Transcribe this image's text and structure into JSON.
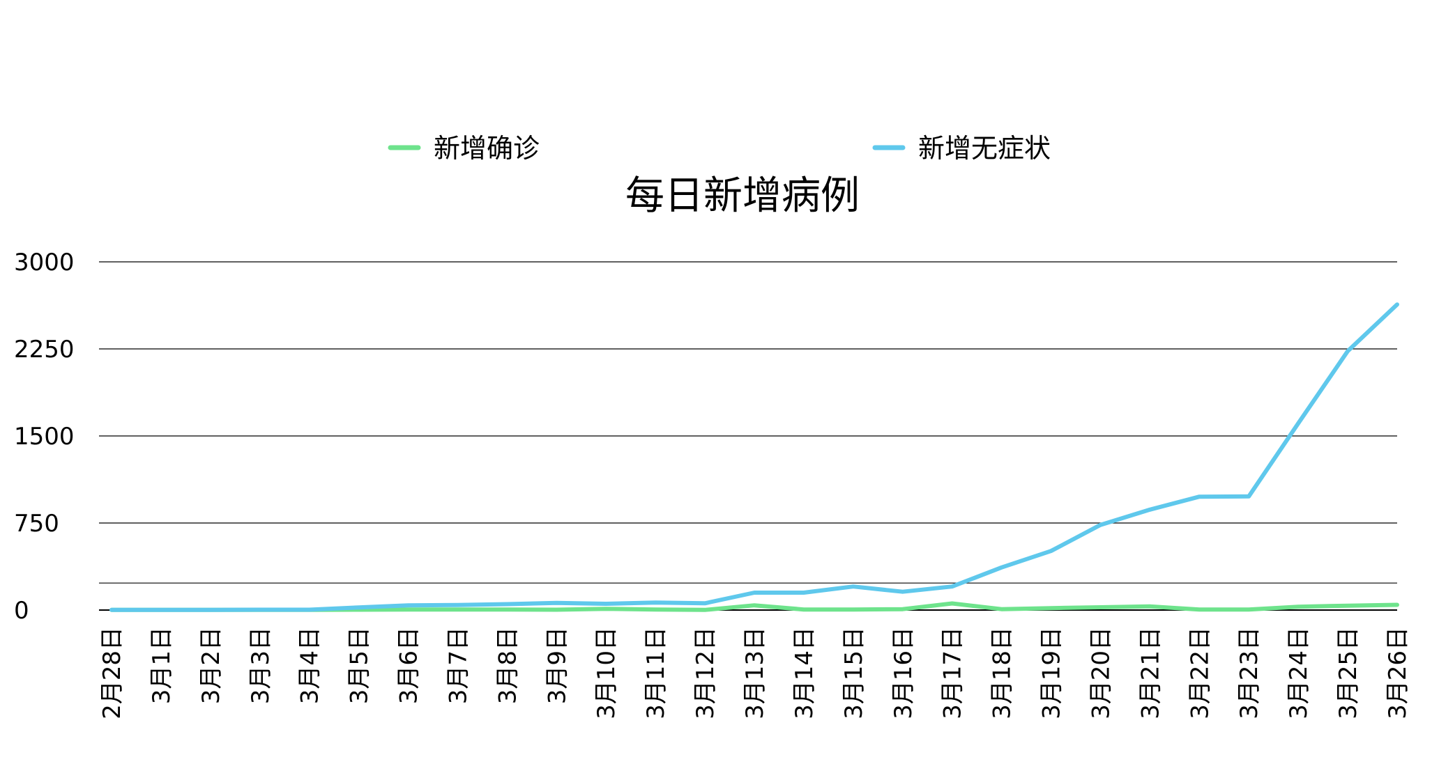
{
  "chart_data": {
    "type": "line",
    "title": "每日新增病例",
    "xlabel": "",
    "ylabel": "",
    "ylim": [
      0,
      3000
    ],
    "yticks": [
      0,
      750,
      1500,
      2250,
      3000
    ],
    "grid": true,
    "legend_position": "top",
    "categories": [
      "2月28日",
      "3月1日",
      "3月2日",
      "3月3日",
      "3月4日",
      "3月5日",
      "3月6日",
      "3月7日",
      "3月8日",
      "3月9日",
      "3月10日",
      "3月11日",
      "3月12日",
      "3月13日",
      "3月14日",
      "3月15日",
      "3月16日",
      "3月17日",
      "3月18日",
      "3月19日",
      "3月20日",
      "3月21日",
      "3月22日",
      "3月23日",
      "3月24日",
      "3月25日",
      "3月26日"
    ],
    "series": [
      {
        "name": "新增确诊",
        "color": "#6ee38c",
        "values": [
          1,
          1,
          1,
          1,
          2,
          3,
          5,
          4,
          5,
          3,
          11,
          5,
          1,
          41,
          5,
          5,
          8,
          57,
          8,
          17,
          24,
          31,
          4,
          4,
          29,
          38,
          45
        ]
      },
      {
        "name": "新增无症状",
        "color": "#5fc8ec",
        "values": [
          1,
          1,
          2,
          3,
          3,
          23,
          41,
          44,
          51,
          62,
          54,
          64,
          58,
          150,
          150,
          203,
          158,
          203,
          367,
          509,
          734,
          865,
          977,
          979,
          1609,
          2231,
          2633
        ]
      }
    ],
    "extra_gridline_value": 233
  },
  "colors": {
    "gridline": "#000000",
    "baseline": "#000000"
  }
}
